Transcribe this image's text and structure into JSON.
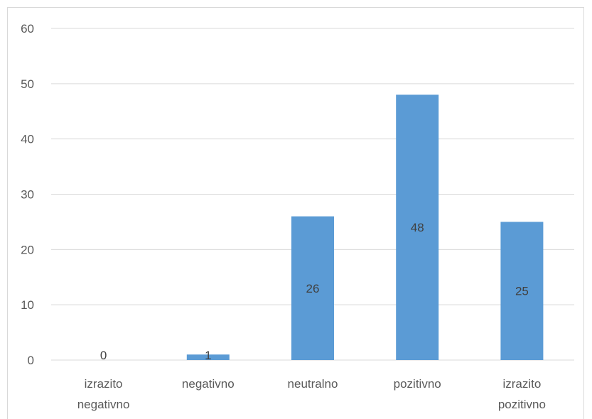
{
  "chart_data": {
    "type": "bar",
    "categories": [
      [
        "izrazito",
        "negativno"
      ],
      [
        "negativno"
      ],
      [
        "neutralno"
      ],
      [
        "pozitivno"
      ],
      [
        "izrazito",
        "pozitivno"
      ]
    ],
    "values": [
      0,
      1,
      26,
      48,
      25
    ],
    "data_labels": [
      "0",
      "1",
      "26",
      "48",
      "25"
    ],
    "y_ticks": [
      "0",
      "10",
      "20",
      "30",
      "40",
      "50",
      "60"
    ],
    "ylim": [
      0,
      60
    ],
    "grid": true,
    "colors": {
      "bar": "#5b9bd5",
      "grid": "#d9d9d9",
      "tick": "#595959",
      "label": "#404040"
    }
  }
}
